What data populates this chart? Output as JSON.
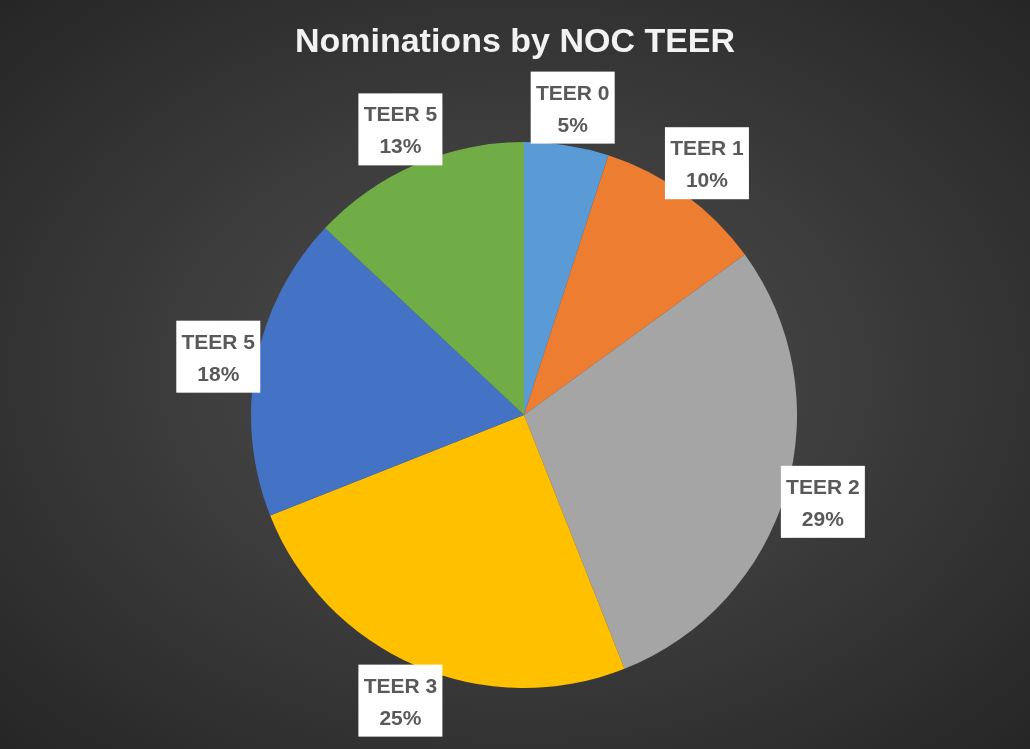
{
  "chart_data": {
    "type": "pie",
    "title": "Nominations by NOC TEER",
    "categories": [
      "TEER 0",
      "TEER 1",
      "TEER 2",
      "TEER 3",
      "TEER 5",
      "TEER 5"
    ],
    "values": [
      5,
      10,
      29,
      25,
      18,
      13
    ],
    "value_labels": [
      "5%",
      "10%",
      "29%",
      "25%",
      "18%",
      "13%"
    ],
    "colors": [
      "#5b9bd5",
      "#ed7d31",
      "#a5a5a5",
      "#ffc000",
      "#4472c4",
      "#70ad47"
    ]
  }
}
